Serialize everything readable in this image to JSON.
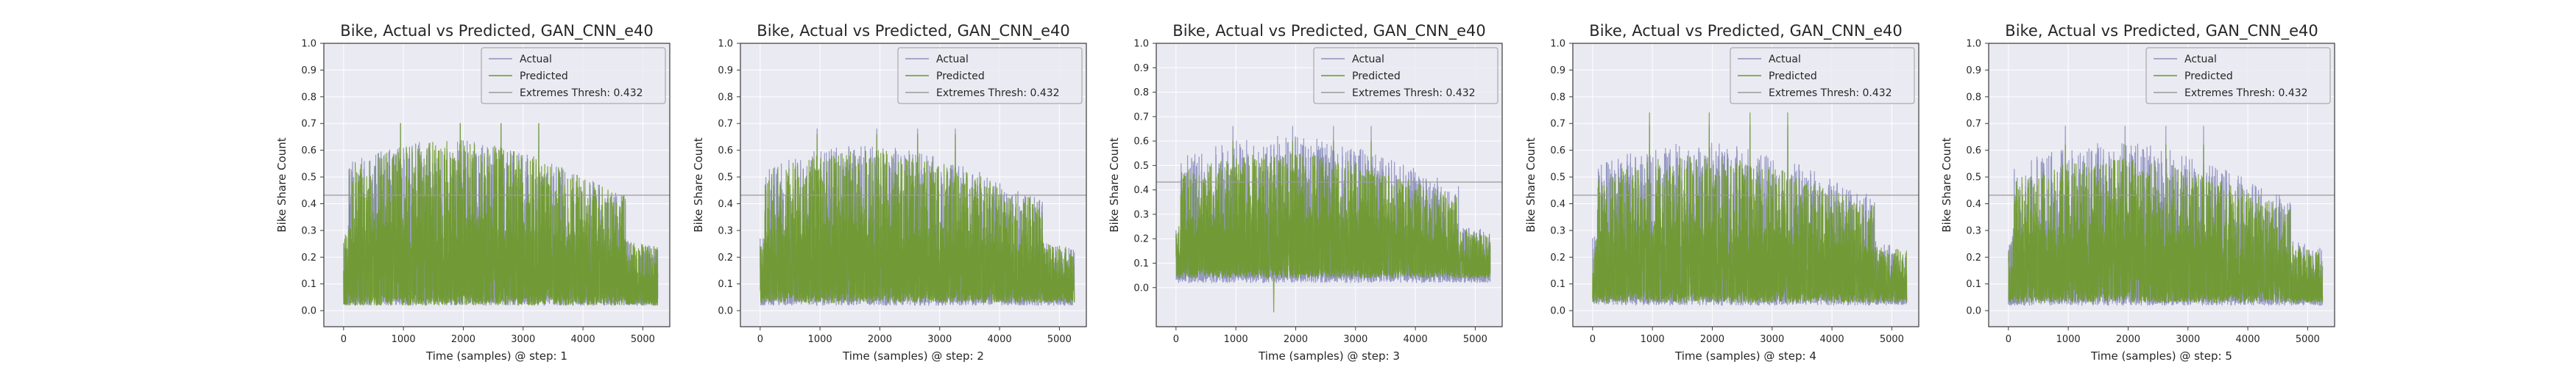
{
  "figure": {
    "panel_count": 5
  },
  "style": {
    "axes_facecolor": "#eaeaf2",
    "grid_color": "#ffffff",
    "actual_color": "#8c8fbd",
    "predicted_color": "#6b9a1e",
    "threshold_color": "#9a9a9a",
    "legend_facecolor": "#eaeaf2",
    "legend_edgecolor": "#9c9c9c",
    "spine_color": "#3a3a3a",
    "text_color": "#262626"
  },
  "chart_data": [
    {
      "type": "line",
      "title": "Bike, Actual vs Predicted, GAN_CNN_e40",
      "xlabel": "Time (samples) @ step: 1",
      "ylabel": "Bike Share Count",
      "xlim": [
        -330,
        5450
      ],
      "ylim": [
        -0.06,
        1.0
      ],
      "xticks": [
        0,
        1000,
        2000,
        3000,
        4000,
        5000
      ],
      "yticks": [
        0.0,
        0.1,
        0.2,
        0.3,
        0.4,
        0.5,
        0.6,
        0.7,
        0.8,
        0.9,
        1.0
      ],
      "xtick_labels": [
        "0",
        "1000",
        "2000",
        "3000",
        "4000",
        "5000"
      ],
      "ytick_labels": [
        "0.0",
        "0.1",
        "0.2",
        "0.3",
        "0.4",
        "0.5",
        "0.6",
        "0.7",
        "0.8",
        "0.9",
        "1.0"
      ],
      "grid": true,
      "legend_position": "upper-right",
      "n_samples": 5250,
      "series": [
        {
          "name": "Actual",
          "kind": "fluctuating-series",
          "visible": "behind predicted",
          "typical_low": 0.02,
          "typical_peak": 0.64,
          "max": 0.7
        },
        {
          "name": "Predicted",
          "kind": "fluctuating-series",
          "typical_low": 0.02,
          "typical_peak": 0.64,
          "max": 0.7
        },
        {
          "name": "Extremes Thresh: 0.432",
          "kind": "hline",
          "value": 0.432
        }
      ]
    },
    {
      "type": "line",
      "title": "Bike, Actual vs Predicted, GAN_CNN_e40",
      "xlabel": "Time (samples) @ step: 2",
      "ylabel": "Bike Share Count",
      "xlim": [
        -330,
        5450
      ],
      "ylim": [
        -0.06,
        1.0
      ],
      "xticks": [
        0,
        1000,
        2000,
        3000,
        4000,
        5000
      ],
      "yticks": [
        0.0,
        0.1,
        0.2,
        0.3,
        0.4,
        0.5,
        0.6,
        0.7,
        0.8,
        0.9,
        1.0
      ],
      "xtick_labels": [
        "0",
        "1000",
        "2000",
        "3000",
        "4000",
        "5000"
      ],
      "ytick_labels": [
        "0.0",
        "0.1",
        "0.2",
        "0.3",
        "0.4",
        "0.5",
        "0.6",
        "0.7",
        "0.8",
        "0.9",
        "1.0"
      ],
      "grid": true,
      "legend_position": "upper-right",
      "n_samples": 5250,
      "series": [
        {
          "name": "Actual",
          "kind": "fluctuating-series",
          "typical_low": 0.02,
          "typical_peak": 0.62,
          "max": 0.68
        },
        {
          "name": "Predicted",
          "kind": "fluctuating-series",
          "typical_low": 0.03,
          "typical_peak": 0.6,
          "max": 0.66
        },
        {
          "name": "Extremes Thresh: 0.432",
          "kind": "hline",
          "value": 0.432
        }
      ]
    },
    {
      "type": "line",
      "title": "Bike, Actual vs Predicted, GAN_CNN_e40",
      "xlabel": "Time (samples) @ step: 3",
      "ylabel": "Bike Share Count",
      "xlim": [
        -330,
        5450
      ],
      "ylim": [
        -0.16,
        1.0
      ],
      "xticks": [
        0,
        1000,
        2000,
        3000,
        4000,
        5000
      ],
      "yticks": [
        0.0,
        0.1,
        0.2,
        0.3,
        0.4,
        0.5,
        0.6,
        0.7,
        0.8,
        0.9,
        1.0
      ],
      "xtick_labels": [
        "0",
        "1000",
        "2000",
        "3000",
        "4000",
        "5000"
      ],
      "ytick_labels": [
        "0.0",
        "0.1",
        "0.2",
        "0.3",
        "0.4",
        "0.5",
        "0.6",
        "0.7",
        "0.8",
        "0.9",
        "1.0"
      ],
      "grid": true,
      "legend_position": "upper-right",
      "n_samples": 5250,
      "series": [
        {
          "name": "Actual",
          "kind": "fluctuating-series",
          "typical_low": 0.02,
          "typical_peak": 0.62,
          "max": 0.66
        },
        {
          "name": "Predicted",
          "kind": "fluctuating-series",
          "typical_low": 0.04,
          "typical_peak": 0.55,
          "max": 0.6,
          "min": -0.1
        },
        {
          "name": "Extremes Thresh: 0.432",
          "kind": "hline",
          "value": 0.432
        }
      ]
    },
    {
      "type": "line",
      "title": "Bike, Actual vs Predicted, GAN_CNN_e40",
      "xlabel": "Time (samples) @ step: 4",
      "ylabel": "Bike Share Count",
      "xlim": [
        -330,
        5450
      ],
      "ylim": [
        -0.06,
        1.0
      ],
      "xticks": [
        0,
        1000,
        2000,
        3000,
        4000,
        5000
      ],
      "yticks": [
        0.0,
        0.1,
        0.2,
        0.3,
        0.4,
        0.5,
        0.6,
        0.7,
        0.8,
        0.9,
        1.0
      ],
      "xtick_labels": [
        "0",
        "1000",
        "2000",
        "3000",
        "4000",
        "5000"
      ],
      "ytick_labels": [
        "0.0",
        "0.1",
        "0.2",
        "0.3",
        "0.4",
        "0.5",
        "0.6",
        "0.7",
        "0.8",
        "0.9",
        "1.0"
      ],
      "grid": true,
      "legend_position": "upper-right",
      "n_samples": 5250,
      "series": [
        {
          "name": "Actual",
          "kind": "fluctuating-series",
          "typical_low": 0.02,
          "typical_peak": 0.63,
          "max": 0.69
        },
        {
          "name": "Predicted",
          "kind": "fluctuating-series",
          "typical_low": 0.03,
          "typical_peak": 0.58,
          "max": 0.74
        },
        {
          "name": "Extremes Thresh: 0.432",
          "kind": "hline",
          "value": 0.432
        }
      ]
    },
    {
      "type": "line",
      "title": "Bike, Actual vs Predicted, GAN_CNN_e40",
      "xlabel": "Time (samples) @ step: 5",
      "ylabel": "Bike Share Count",
      "xlim": [
        -330,
        5450
      ],
      "ylim": [
        -0.06,
        1.0
      ],
      "xticks": [
        0,
        1000,
        2000,
        3000,
        4000,
        5000
      ],
      "yticks": [
        0.0,
        0.1,
        0.2,
        0.3,
        0.4,
        0.5,
        0.6,
        0.7,
        0.8,
        0.9,
        1.0
      ],
      "xtick_labels": [
        "0",
        "1000",
        "2000",
        "3000",
        "4000",
        "5000"
      ],
      "ytick_labels": [
        "0.0",
        "0.1",
        "0.2",
        "0.3",
        "0.4",
        "0.5",
        "0.6",
        "0.7",
        "0.8",
        "0.9",
        "1.0"
      ],
      "grid": true,
      "legend_position": "upper-right",
      "n_samples": 5250,
      "series": [
        {
          "name": "Actual",
          "kind": "fluctuating-series",
          "typical_low": 0.02,
          "typical_peak": 0.63,
          "max": 0.69
        },
        {
          "name": "Predicted",
          "kind": "fluctuating-series",
          "typical_low": 0.03,
          "typical_peak": 0.57,
          "max": 0.62
        },
        {
          "name": "Extremes Thresh: 0.432",
          "kind": "hline",
          "value": 0.432
        }
      ]
    }
  ]
}
